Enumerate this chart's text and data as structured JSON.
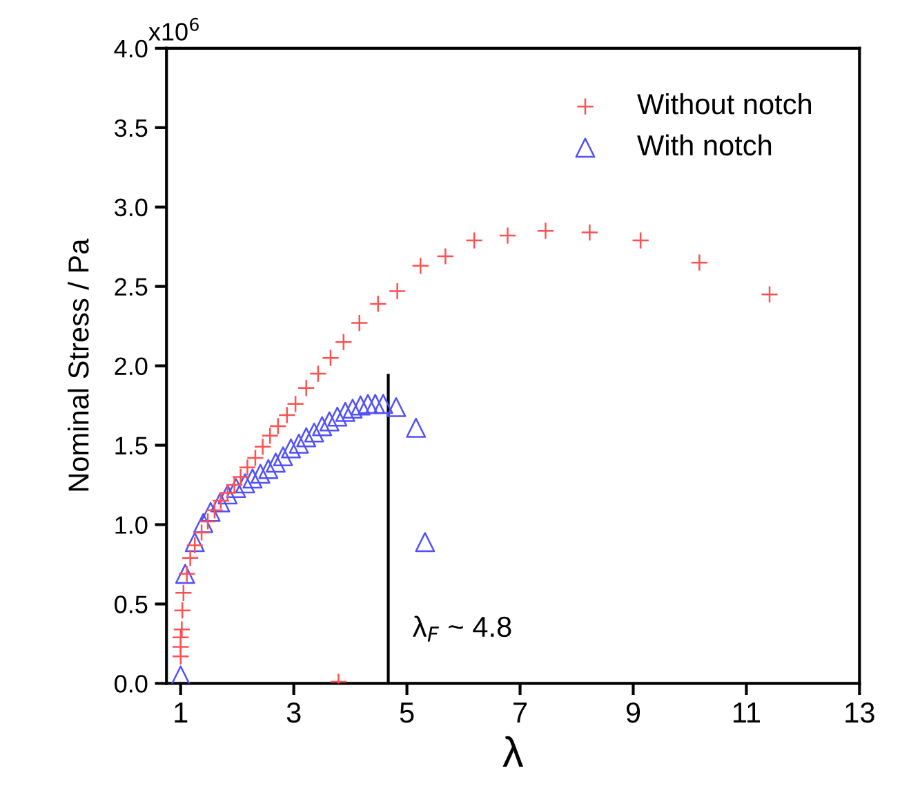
{
  "chart_data": {
    "type": "scatter",
    "xlabel": "λ",
    "ylabel": "Nominal Stress / Pa",
    "xlim": [
      0.75,
      13
    ],
    "xticks": [
      1,
      3,
      5,
      7,
      9,
      11,
      13
    ],
    "ylim": [
      0,
      4.0
    ],
    "yticks": [
      {
        "value": 0,
        "label": "0.0"
      },
      {
        "value": 0.5,
        "label": "0.5"
      },
      {
        "value": 1.0,
        "label": "1.0"
      },
      {
        "value": 1.5,
        "label": "1.5"
      },
      {
        "value": 2.0,
        "label": "2.0"
      },
      {
        "value": 2.5,
        "label": "2.5"
      },
      {
        "value": 3.0,
        "label": "3.0"
      },
      {
        "value": 3.5,
        "label": "3.5"
      },
      {
        "value": 4.0,
        "label": "4.0"
      }
    ],
    "grid": false,
    "legend": "top right",
    "series": [
      {
        "name": "Without notch",
        "color": "#ff5050",
        "marker": "cross",
        "x": [
          1.0,
          1.0,
          1.0,
          1.02,
          1.03,
          1.05,
          1.11,
          1.17,
          1.25,
          1.37,
          1.48,
          1.6,
          1.71,
          1.83,
          1.95,
          2.06,
          2.18,
          2.32,
          2.45,
          2.58,
          2.72,
          2.88,
          3.03,
          3.22,
          3.43,
          3.65,
          3.88,
          4.16,
          4.49,
          4.83,
          5.24,
          5.68,
          6.19,
          6.78,
          7.45,
          8.23,
          9.13,
          10.17,
          11.41,
          3.79
        ],
        "values": [
          0.17,
          0.23,
          0.29,
          0.34,
          0.46,
          0.57,
          0.69,
          0.79,
          0.87,
          0.95,
          1.02,
          1.09,
          1.15,
          1.2,
          1.25,
          1.3,
          1.36,
          1.42,
          1.49,
          1.56,
          1.62,
          1.69,
          1.76,
          1.86,
          1.95,
          2.05,
          2.15,
          2.27,
          2.39,
          2.47,
          2.63,
          2.69,
          2.79,
          2.82,
          2.85,
          2.84,
          2.79,
          2.65,
          2.45,
          0.01
        ]
      },
      {
        "name": "With notch",
        "color": "#5050ff",
        "marker": "triangle",
        "x": [
          1.0,
          1.08,
          1.25,
          1.4,
          1.53,
          1.7,
          1.83,
          1.98,
          2.14,
          2.27,
          2.41,
          2.55,
          2.68,
          2.81,
          2.95,
          3.09,
          3.22,
          3.36,
          3.5,
          3.63,
          3.77,
          3.91,
          4.04,
          4.18,
          4.31,
          4.44,
          4.58,
          4.81,
          5.16,
          5.32
        ],
        "values": [
          0.05,
          0.69,
          0.89,
          1.01,
          1.08,
          1.14,
          1.19,
          1.23,
          1.26,
          1.29,
          1.32,
          1.35,
          1.39,
          1.43,
          1.48,
          1.51,
          1.55,
          1.58,
          1.62,
          1.65,
          1.68,
          1.71,
          1.73,
          1.75,
          1.76,
          1.76,
          1.76,
          1.74,
          1.61,
          0.89
        ]
      },
      {
        "type": "line",
        "color": "#000000",
        "marker": "none",
        "x": [
          4.67,
          4.67
        ],
        "values": [
          0,
          1.94
        ]
      }
    ],
    "annotations": [
      "λ$_{F}$ ~ 4.8",
      "x10$^{6}$"
    ]
  }
}
